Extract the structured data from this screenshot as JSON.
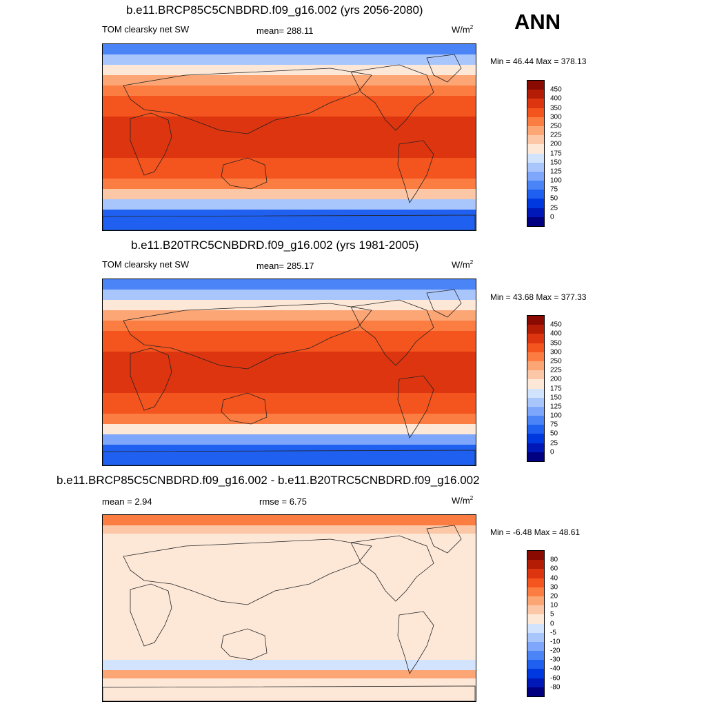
{
  "season_label": "ANN",
  "panels": [
    {
      "title": "b.e11.BRCP85C5CNBDRD.f09_g16.002 (yrs 2056-2080)",
      "variable": "TOM clearsky net SW",
      "mean_text": "mean= 288.11",
      "units_base": "W/m",
      "units_exp": "2",
      "minmax": "Min =  46.44 Max = 378.13",
      "colorbar_labels": [
        "450",
        "400",
        "350",
        "300",
        "250",
        "225",
        "200",
        "175",
        "150",
        "125",
        "100",
        "75",
        "50",
        "25",
        "0"
      ]
    },
    {
      "title": "b.e11.B20TRC5CNBDRD.f09_g16.002 (yrs 1981-2005)",
      "variable": "TOM clearsky net SW",
      "mean_text": "mean= 285.17",
      "units_base": "W/m",
      "units_exp": "2",
      "minmax": "Min =  43.68 Max = 377.33",
      "colorbar_labels": [
        "450",
        "400",
        "350",
        "300",
        "250",
        "225",
        "200",
        "175",
        "150",
        "125",
        "100",
        "75",
        "50",
        "25",
        "0"
      ]
    },
    {
      "title": "b.e11.BRCP85C5CNBDRD.f09_g16.002 - b.e11.B20TRC5CNBDRD.f09_g16.002",
      "mean_text": "mean =   2.94",
      "rmse_text": "rmse =   6.75",
      "units_base": "W/m",
      "units_exp": "2",
      "minmax": "Min =  -6.48 Max =  48.61",
      "colorbar_labels": [
        "80",
        "60",
        "40",
        "30",
        "20",
        "10",
        "5",
        "0",
        "-5",
        "-10",
        "-20",
        "-30",
        "-40",
        "-60",
        "-80"
      ]
    }
  ],
  "colors": {
    "abs_scale": [
      "#000080",
      "#0018b8",
      "#0038e0",
      "#2060f0",
      "#4a84f6",
      "#7ea6fa",
      "#a9c6fc",
      "#d2e3fe",
      "#fde8d8",
      "#fcc7a6",
      "#fca676",
      "#fc7d42",
      "#f4541e",
      "#dc3510",
      "#b41c06",
      "#8a0a02"
    ],
    "diff_scale": [
      "#000080",
      "#0018b8",
      "#0038e0",
      "#2060f0",
      "#4a84f6",
      "#7ea6fa",
      "#a9c6fc",
      "#d2e3fe",
      "#fde8d8",
      "#fcc7a6",
      "#fca676",
      "#fc7d42",
      "#f4541e",
      "#dc3510",
      "#b41c06",
      "#8a0a02"
    ]
  },
  "chart_data": [
    {
      "type": "heatmap",
      "title": "b.e11.BRCP85C5CNBDRD.f09_g16.002 (yrs 2056-2080)",
      "subtitle": "TOM clearsky net SW",
      "units": "W/m2",
      "mean": 288.11,
      "min": 46.44,
      "max": 378.13,
      "levels": [
        0,
        25,
        50,
        75,
        100,
        125,
        150,
        175,
        200,
        225,
        250,
        300,
        350,
        400,
        450
      ],
      "lat_bands_north_to_south": [
        {
          "lat_range": [
            90,
            80
          ],
          "value": 90
        },
        {
          "lat_range": [
            80,
            70
          ],
          "value": 140
        },
        {
          "lat_range": [
            70,
            60
          ],
          "value": 190
        },
        {
          "lat_range": [
            60,
            50
          ],
          "value": 240
        },
        {
          "lat_range": [
            50,
            40
          ],
          "value": 290
        },
        {
          "lat_range": [
            40,
            30
          ],
          "value": 320
        },
        {
          "lat_range": [
            30,
            20
          ],
          "value": 345
        },
        {
          "lat_range": [
            20,
            -20
          ],
          "value": 365
        },
        {
          "lat_range": [
            -20,
            -30
          ],
          "value": 345
        },
        {
          "lat_range": [
            -30,
            -40
          ],
          "value": 310
        },
        {
          "lat_range": [
            -40,
            -50
          ],
          "value": 260
        },
        {
          "lat_range": [
            -50,
            -60
          ],
          "value": 205
        },
        {
          "lat_range": [
            -60,
            -70
          ],
          "value": 130
        },
        {
          "lat_range": [
            -70,
            -90
          ],
          "value": 60
        }
      ]
    },
    {
      "type": "heatmap",
      "title": "b.e11.B20TRC5CNBDRD.f09_g16.002 (yrs 1981-2005)",
      "subtitle": "TOM clearsky net SW",
      "units": "W/m2",
      "mean": 285.17,
      "min": 43.68,
      "max": 377.33,
      "levels": [
        0,
        25,
        50,
        75,
        100,
        125,
        150,
        175,
        200,
        225,
        250,
        300,
        350,
        400,
        450
      ],
      "lat_bands_north_to_south": [
        {
          "lat_range": [
            90,
            80
          ],
          "value": 85
        },
        {
          "lat_range": [
            80,
            70
          ],
          "value": 130
        },
        {
          "lat_range": [
            70,
            60
          ],
          "value": 185
        },
        {
          "lat_range": [
            60,
            50
          ],
          "value": 235
        },
        {
          "lat_range": [
            50,
            40
          ],
          "value": 285
        },
        {
          "lat_range": [
            40,
            30
          ],
          "value": 318
        },
        {
          "lat_range": [
            30,
            20
          ],
          "value": 343
        },
        {
          "lat_range": [
            20,
            -20
          ],
          "value": 363
        },
        {
          "lat_range": [
            -20,
            -30
          ],
          "value": 343
        },
        {
          "lat_range": [
            -30,
            -40
          ],
          "value": 308
        },
        {
          "lat_range": [
            -40,
            -50
          ],
          "value": 255
        },
        {
          "lat_range": [
            -50,
            -60
          ],
          "value": 195
        },
        {
          "lat_range": [
            -60,
            -70
          ],
          "value": 120
        },
        {
          "lat_range": [
            -70,
            -90
          ],
          "value": 55
        }
      ]
    },
    {
      "type": "heatmap",
      "title": "b.e11.BRCP85C5CNBDRD.f09_g16.002 - b.e11.B20TRC5CNBDRD.f09_g16.002",
      "units": "W/m2",
      "mean": 2.94,
      "rmse": 6.75,
      "min": -6.48,
      "max": 48.61,
      "levels": [
        -80,
        -60,
        -40,
        -30,
        -20,
        -10,
        -5,
        0,
        5,
        10,
        20,
        30,
        40,
        60,
        80
      ],
      "lat_bands_north_to_south": [
        {
          "lat_range": [
            90,
            80
          ],
          "value": 25
        },
        {
          "lat_range": [
            80,
            72
          ],
          "value": 8
        },
        {
          "lat_range": [
            72,
            -50
          ],
          "value": 2
        },
        {
          "lat_range": [
            -50,
            -60
          ],
          "value": -2
        },
        {
          "lat_range": [
            -60,
            -68
          ],
          "value": 18
        },
        {
          "lat_range": [
            -68,
            -90
          ],
          "value": 3
        }
      ]
    }
  ]
}
